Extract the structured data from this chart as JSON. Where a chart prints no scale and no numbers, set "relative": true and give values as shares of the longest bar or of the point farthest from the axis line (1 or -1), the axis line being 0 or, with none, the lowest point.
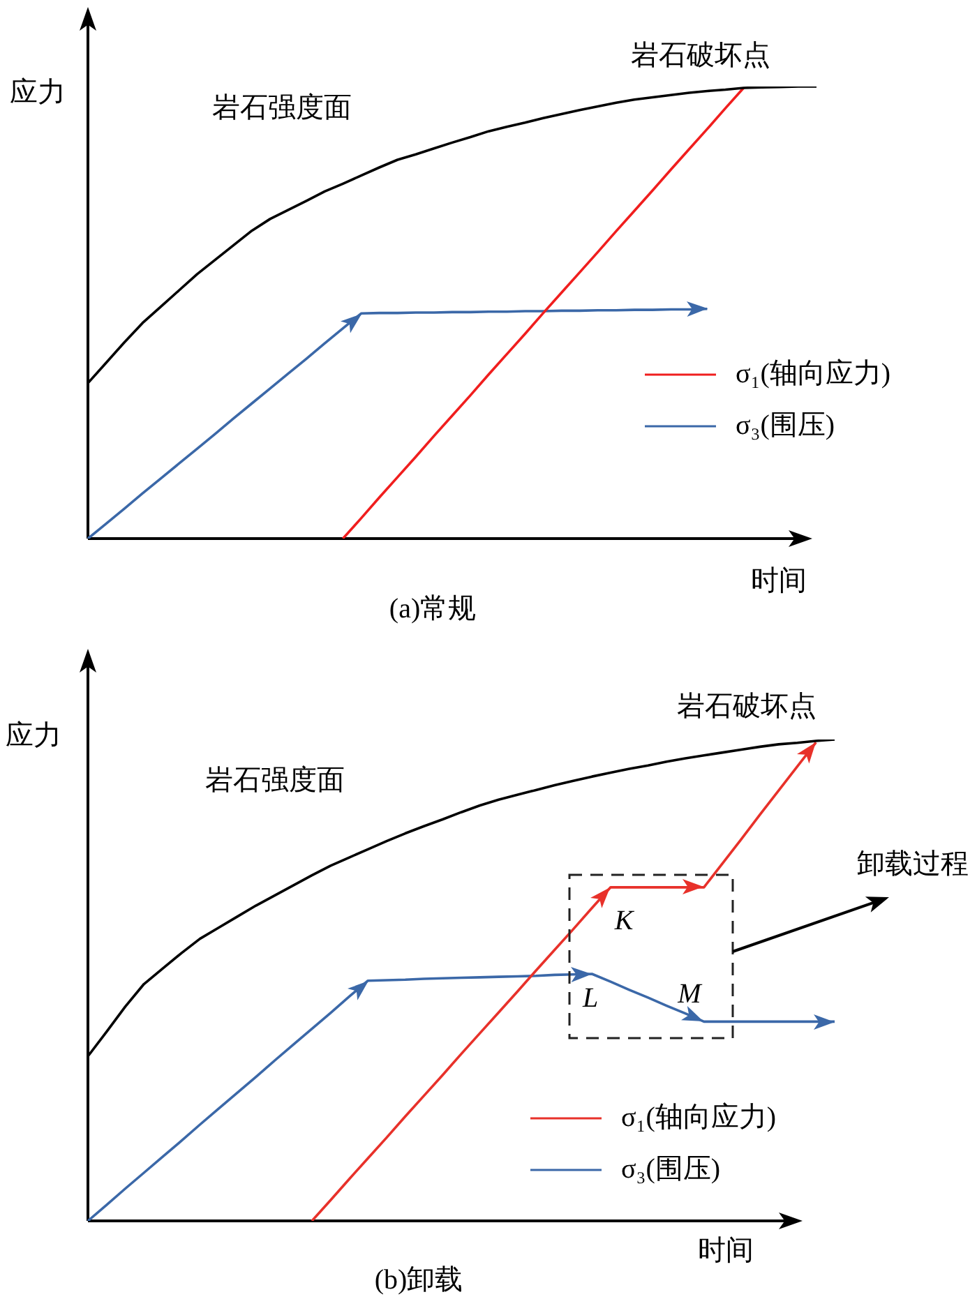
{
  "chart_data": [
    {
      "type": "line",
      "title": "(a)常规",
      "xlabel": "时间",
      "ylabel": "应力",
      "relative": true,
      "legend": "right",
      "categories": [
        null,
        null,
        null,
        null,
        null,
        null,
        null,
        null,
        null,
        null,
        null,
        null,
        null,
        null,
        null,
        null,
        null,
        null,
        null,
        null,
        null,
        null,
        null,
        null,
        null,
        null,
        null,
        null,
        null,
        null,
        null,
        null,
        null,
        null,
        null,
        null,
        null,
        null,
        null,
        null,
        null
      ],
      "series": [
        {
          "color": "#000000",
          "values": [
            0.344,
            0.389,
            0.434,
            0.477,
            0.513,
            0.549,
            0.585,
            0.617,
            0.649,
            0.681,
            0.707,
            0.727,
            0.747,
            0.768,
            0.785,
            0.803,
            0.821,
            0.838,
            0.85,
            0.863,
            0.876,
            0.888,
            0.901,
            0.911,
            0.92,
            0.93,
            0.939,
            0.948,
            0.956,
            0.964,
            0.971,
            0.976,
            0.981,
            0.986,
            0.99,
            0.993,
            0.997,
            0.998,
            0.999,
            1.0,
            1.0
          ]
        },
        {
          "name": "σ₁(轴向应力)",
          "color": "#f01e1e",
          "values": [
            null,
            null,
            null,
            null,
            null,
            null,
            null,
            null,
            null,
            null,
            null,
            null,
            null,
            null,
            0,
            0.045,
            0.091,
            0.136,
            0.181,
            0.227,
            0.272,
            0.317,
            0.363,
            0.408,
            0.453,
            0.499,
            0.544,
            0.589,
            0.634,
            0.68,
            0.725,
            0.77,
            0.816,
            0.861,
            0.906,
            0.952,
            0.997,
            null,
            null,
            null,
            null
          ]
        },
        {
          "name": "σ₃(围压)",
          "color": "#3b68a8",
          "values": [
            0,
            0.033,
            0.066,
            0.1,
            0.133,
            0.166,
            0.199,
            0.232,
            0.266,
            0.299,
            0.332,
            0.365,
            0.398,
            0.432,
            0.465,
            0.498,
            0.499,
            0.499,
            0.5,
            0.5,
            0.501,
            0.501,
            0.502,
            0.502,
            0.503,
            0.503,
            0.504,
            0.504,
            0.505,
            0.505,
            0.506,
            0.506,
            0.507,
            0.507,
            0.508,
            null,
            null,
            null,
            null,
            null,
            null
          ]
        }
      ],
      "annotations": [
        "岩石强度面",
        {
          "text": "岩石破坏点",
          "y": 0.997
        }
      ]
    },
    {
      "type": "line",
      "title": "(b)卸载",
      "xlabel": "时间",
      "ylabel": "应力",
      "relative": true,
      "legend": "bottom right",
      "categories": [
        null,
        null,
        null,
        null,
        null,
        null,
        null,
        null,
        null,
        null,
        null,
        null,
        null,
        null,
        null,
        null,
        null,
        null,
        null,
        null,
        null,
        null,
        null,
        null,
        null,
        null,
        null,
        null,
        null,
        null,
        null,
        null,
        null,
        null,
        null,
        null,
        null,
        null,
        null,
        null,
        null
      ],
      "series": [
        {
          "color": "#000000",
          "values": [
            0.342,
            0.393,
            0.445,
            0.492,
            0.524,
            0.556,
            0.586,
            0.609,
            0.632,
            0.655,
            0.676,
            0.697,
            0.718,
            0.738,
            0.755,
            0.772,
            0.789,
            0.805,
            0.82,
            0.834,
            0.849,
            0.863,
            0.875,
            0.885,
            0.895,
            0.905,
            0.914,
            0.923,
            0.931,
            0.939,
            0.946,
            0.954,
            0.961,
            0.967,
            0.973,
            0.979,
            0.985,
            0.99,
            0.993,
            0.997,
            1.0
          ]
        },
        {
          "name": "σ₁(轴向应力)",
          "color": "#e8312a",
          "values": [
            null,
            null,
            null,
            null,
            null,
            null,
            null,
            null,
            null,
            null,
            null,
            null,
            0,
            0.043,
            0.087,
            0.13,
            0.173,
            0.217,
            0.26,
            0.303,
            0.347,
            0.39,
            0.433,
            0.476,
            0.52,
            0.563,
            0.606,
            0.65,
            0.693,
            0.693,
            0.693,
            0.693,
            0.693,
            0.693,
            0.743,
            0.793,
            0.844,
            0.894,
            0.944,
            0.994,
            null
          ]
        },
        {
          "name": "σ₃(围压)",
          "color": "#3b68a8",
          "values": [
            0,
            0.033,
            0.067,
            0.1,
            0.133,
            0.166,
            0.2,
            0.233,
            0.266,
            0.299,
            0.333,
            0.366,
            0.399,
            0.432,
            0.466,
            0.499,
            0.5,
            0.501,
            0.503,
            0.504,
            0.505,
            0.506,
            0.507,
            0.508,
            0.509,
            0.511,
            0.512,
            0.513,
            0.497,
            0.48,
            0.464,
            0.447,
            0.431,
            0.414,
            0.414,
            0.414,
            0.414,
            0.414,
            0.414,
            0.414,
            0.414
          ]
        }
      ],
      "annotations": [
        "岩石强度面",
        {
          "text": "岩石破坏点",
          "y": 0.994
        },
        {
          "text": "K",
          "y": 0.693
        },
        {
          "text": "L",
          "y": 0.513
        },
        {
          "text": "M",
          "y": 0.414
        },
        "卸载过程"
      ]
    }
  ]
}
